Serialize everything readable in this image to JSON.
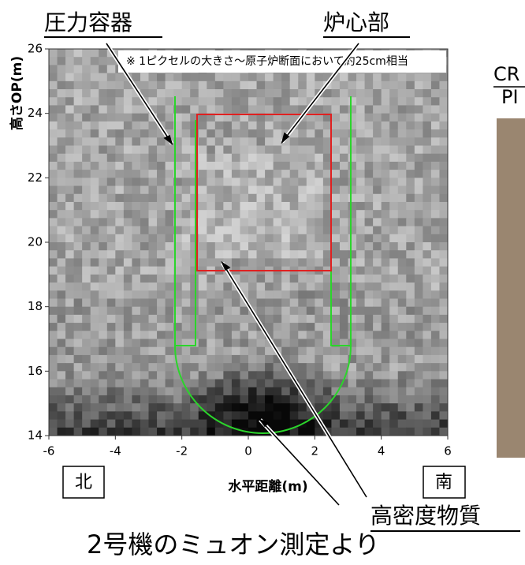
{
  "labels": {
    "pressure_vessel": "圧力容器",
    "core": "炉心部",
    "note": "※ 1ピクセルの大きさ～原子炉断面において約25cm相当",
    "y_axis": "高さOP(m)",
    "x_axis": "水平距離(m)",
    "north": "北",
    "south": "南",
    "dense": "高密度物質",
    "caption": "2号機のミュオン測定より",
    "cut1": "CR",
    "cut2": "PI"
  },
  "axes": {
    "xlim": [
      -6,
      6
    ],
    "ylim": [
      14,
      26
    ],
    "xticks": [
      -6,
      -4,
      -2,
      0,
      2,
      4,
      6
    ],
    "yticks": [
      14,
      16,
      18,
      20,
      22,
      24,
      26
    ]
  }
}
